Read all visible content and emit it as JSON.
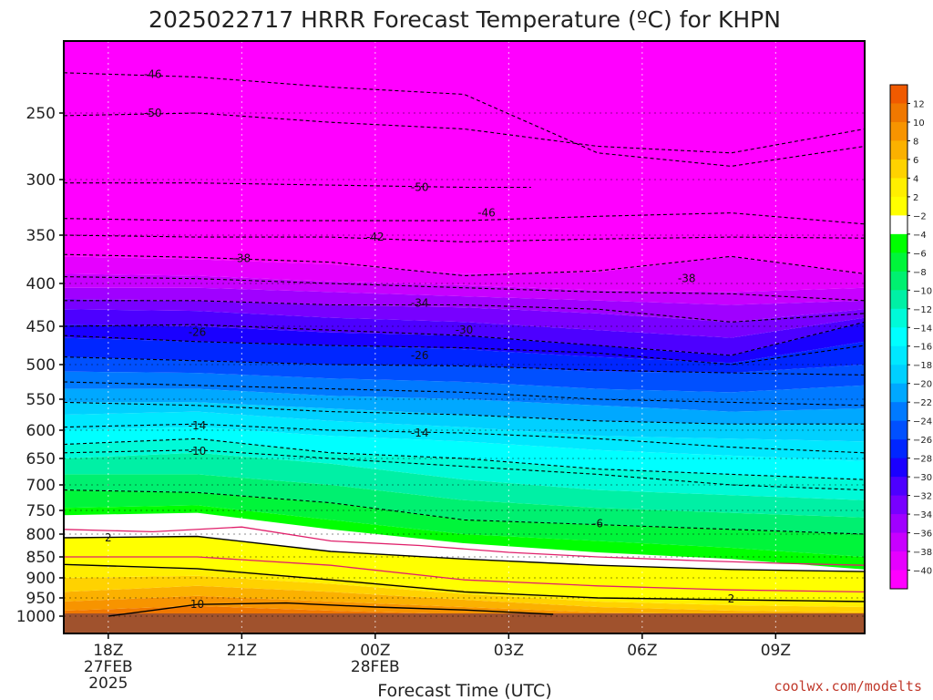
{
  "chart_data": {
    "type": "heatmap",
    "title": "2025022717 HRRR Forecast Temperature (ºC) for KHPN",
    "xlabel": "Forecast Time (UTC)",
    "ylabel": "",
    "x_ticks": [
      {
        "label": "18Z",
        "sub": [
          "27FEB",
          "2025"
        ],
        "hour": 1
      },
      {
        "label": "21Z",
        "sub": [],
        "hour": 4
      },
      {
        "label": "00Z",
        "sub": [
          "28FEB"
        ],
        "hour": 7
      },
      {
        "label": "03Z",
        "sub": [],
        "hour": 10
      },
      {
        "label": "06Z",
        "sub": [],
        "hour": 13
      },
      {
        "label": "09Z",
        "sub": [],
        "hour": 16
      }
    ],
    "x_range_hours": [
      0,
      18
    ],
    "y_axis": "pressure (hPa), inverted",
    "y_range": [
      1000,
      200
    ],
    "y_ticks": [
      250,
      300,
      350,
      400,
      450,
      500,
      550,
      600,
      650,
      700,
      750,
      800,
      850,
      900,
      950,
      1000
    ],
    "colorbar_ticks": [
      12,
      10,
      8,
      6,
      4,
      2,
      -2,
      -4,
      -6,
      -8,
      -10,
      -12,
      -14,
      -16,
      -18,
      -20,
      -22,
      -24,
      -26,
      -28,
      -30,
      -32,
      -34,
      -36,
      -38,
      -40
    ],
    "colorbar_colors": [
      "#f05a00",
      "#f07800",
      "#f79400",
      "#fbb100",
      "#ffd200",
      "#ffef00",
      "#ffff00",
      "#ffffff",
      "#00ff00",
      "#00f53a",
      "#00f070",
      "#00f0a5",
      "#00fad8",
      "#00ffff",
      "#00e8ff",
      "#00d0ff",
      "#00a8ff",
      "#007aff",
      "#0050ff",
      "#0026ff",
      "#1a00ff",
      "#4d00ff",
      "#7800ff",
      "#a000ff",
      "#c800ff",
      "#e600ff",
      "#ff00ff"
    ],
    "contours": [
      {
        "value": -50,
        "label": "-50",
        "points": [
          [
            0,
            252
          ],
          [
            3,
            250
          ],
          [
            6,
            257
          ],
          [
            9,
            262
          ],
          [
            12,
            275
          ],
          [
            15,
            280
          ],
          [
            18,
            262
          ]
        ],
        "label_at": [
          2,
          250
        ]
      },
      {
        "value": -46,
        "label": "-46",
        "points": [
          [
            0,
            222
          ],
          [
            3,
            225
          ],
          [
            6,
            232
          ],
          [
            9,
            237
          ],
          [
            12,
            280
          ],
          [
            15,
            290
          ],
          [
            18,
            275
          ]
        ],
        "label_at": [
          2,
          223
        ]
      },
      {
        "value": -50,
        "label": "-50",
        "points": [
          [
            0,
            303
          ],
          [
            3,
            303
          ],
          [
            6,
            305
          ],
          [
            9,
            307
          ],
          [
            10.5,
            307
          ]
        ],
        "label_at": [
          8,
          307
        ]
      },
      {
        "value": -46,
        "label": "-46",
        "points": [
          [
            0,
            335
          ],
          [
            3,
            337
          ],
          [
            6,
            337
          ],
          [
            9,
            337
          ],
          [
            12,
            333
          ],
          [
            15,
            330
          ],
          [
            18,
            340
          ]
        ],
        "label_at": [
          9.5,
          330
        ]
      },
      {
        "value": -42,
        "label": "-42",
        "points": [
          [
            0,
            350
          ],
          [
            3,
            352
          ],
          [
            6,
            352
          ],
          [
            9,
            357
          ],
          [
            12,
            354
          ],
          [
            15,
            352
          ],
          [
            18,
            353
          ]
        ],
        "label_at": [
          7,
          352
        ]
      },
      {
        "value": -38,
        "label": "-38",
        "points": [
          [
            0,
            370
          ],
          [
            3,
            373
          ],
          [
            6,
            378
          ],
          [
            9,
            392
          ],
          [
            12,
            387
          ],
          [
            15,
            372
          ],
          [
            18,
            390
          ]
        ],
        "label_at": [
          4,
          374
        ]
      },
      {
        "value": -38,
        "label": "-38",
        "points": [
          [
            0,
            393
          ],
          [
            3,
            395
          ],
          [
            6,
            400
          ],
          [
            9,
            405
          ],
          [
            12,
            410
          ],
          [
            15,
            412
          ],
          [
            18,
            420
          ]
        ],
        "label_at": [
          14,
          395
        ]
      },
      {
        "value": -34,
        "label": "-34",
        "points": [
          [
            0,
            420
          ],
          [
            3,
            420
          ],
          [
            6,
            425
          ],
          [
            9,
            425
          ],
          [
            12,
            430
          ],
          [
            15,
            445
          ],
          [
            18,
            435
          ]
        ],
        "label_at": [
          8,
          423
        ]
      },
      {
        "value": -30,
        "label": "-30",
        "points": [
          [
            0,
            450
          ],
          [
            3,
            448
          ],
          [
            6,
            455
          ],
          [
            9,
            462
          ],
          [
            12,
            475
          ],
          [
            15,
            488
          ],
          [
            18,
            445
          ]
        ],
        "label_at": [
          9,
          455
        ]
      },
      {
        "value": -26,
        "label": "-26",
        "points": [
          [
            0,
            462
          ],
          [
            3,
            470
          ],
          [
            6,
            475
          ],
          [
            9,
            478
          ],
          [
            12,
            485
          ],
          [
            15,
            500
          ],
          [
            18,
            475
          ]
        ],
        "label_at": [
          3,
          458
        ]
      },
      {
        "value": -26,
        "label": "-26",
        "points": [
          [
            0,
            490
          ],
          [
            3,
            495
          ],
          [
            6,
            500
          ],
          [
            9,
            502
          ],
          [
            12,
            508
          ],
          [
            15,
            512
          ],
          [
            18,
            515
          ]
        ],
        "label_at": [
          8,
          488
        ]
      },
      {
        "value": -22,
        "label": "-22",
        "points": [
          [
            0,
            525
          ],
          [
            3,
            530
          ],
          [
            6,
            535
          ],
          [
            9,
            540
          ],
          [
            12,
            550
          ],
          [
            15,
            555
          ],
          [
            18,
            560
          ]
        ],
        "label_at": null
      },
      {
        "value": -18,
        "label": "-18",
        "points": [
          [
            0,
            555
          ],
          [
            3,
            560
          ],
          [
            6,
            570
          ],
          [
            9,
            575
          ],
          [
            12,
            585
          ],
          [
            15,
            590
          ],
          [
            18,
            590
          ]
        ],
        "label_at": null
      },
      {
        "value": -14,
        "label": "-14",
        "points": [
          [
            0,
            595
          ],
          [
            3,
            590
          ],
          [
            6,
            600
          ],
          [
            9,
            605
          ],
          [
            12,
            615
          ],
          [
            15,
            630
          ],
          [
            18,
            640
          ]
        ],
        "label_at": [
          3,
          593
        ]
      },
      {
        "value": -14,
        "label": "-14",
        "points": [
          [
            0,
            625
          ],
          [
            3,
            615
          ],
          [
            6,
            640
          ],
          [
            9,
            650
          ],
          [
            12,
            670
          ],
          [
            15,
            680
          ],
          [
            18,
            690
          ]
        ],
        "label_at": [
          8,
          605
        ]
      },
      {
        "value": -10,
        "label": "-10",
        "points": [
          [
            0,
            640
          ],
          [
            3,
            635
          ],
          [
            6,
            650
          ],
          [
            9,
            665
          ],
          [
            12,
            680
          ],
          [
            15,
            700
          ],
          [
            18,
            710
          ]
        ],
        "label_at": [
          3,
          637
        ]
      },
      {
        "value": -6,
        "label": "-6",
        "points": [
          [
            0,
            710
          ],
          [
            3,
            715
          ],
          [
            6,
            735
          ],
          [
            9,
            770
          ],
          [
            12,
            780
          ],
          [
            15,
            790
          ],
          [
            18,
            800
          ]
        ],
        "label_at": [
          12,
          778
        ]
      },
      {
        "value": 2,
        "label": "2",
        "points": [
          [
            0,
            808
          ],
          [
            3,
            805
          ],
          [
            6,
            838
          ],
          [
            9,
            855
          ],
          [
            12,
            870
          ],
          [
            15,
            880
          ],
          [
            18,
            885
          ]
        ],
        "label_at": [
          1,
          808
        ]
      },
      {
        "value": 2,
        "label": "2",
        "points": [
          [
            0,
            868
          ],
          [
            3,
            878
          ],
          [
            6,
            905
          ],
          [
            9,
            935
          ],
          [
            12,
            950
          ],
          [
            15,
            955
          ],
          [
            18,
            960
          ]
        ],
        "label_at": [
          15,
          952
        ]
      },
      {
        "value": 10,
        "label": "10",
        "points": [
          [
            1,
            1000
          ],
          [
            3,
            968
          ],
          [
            5,
            964
          ],
          [
            7,
            975
          ],
          [
            9,
            983
          ],
          [
            11,
            995
          ]
        ],
        "label_at": [
          3,
          967
        ]
      }
    ]
  },
  "credit": "coolwx.com/modelts"
}
